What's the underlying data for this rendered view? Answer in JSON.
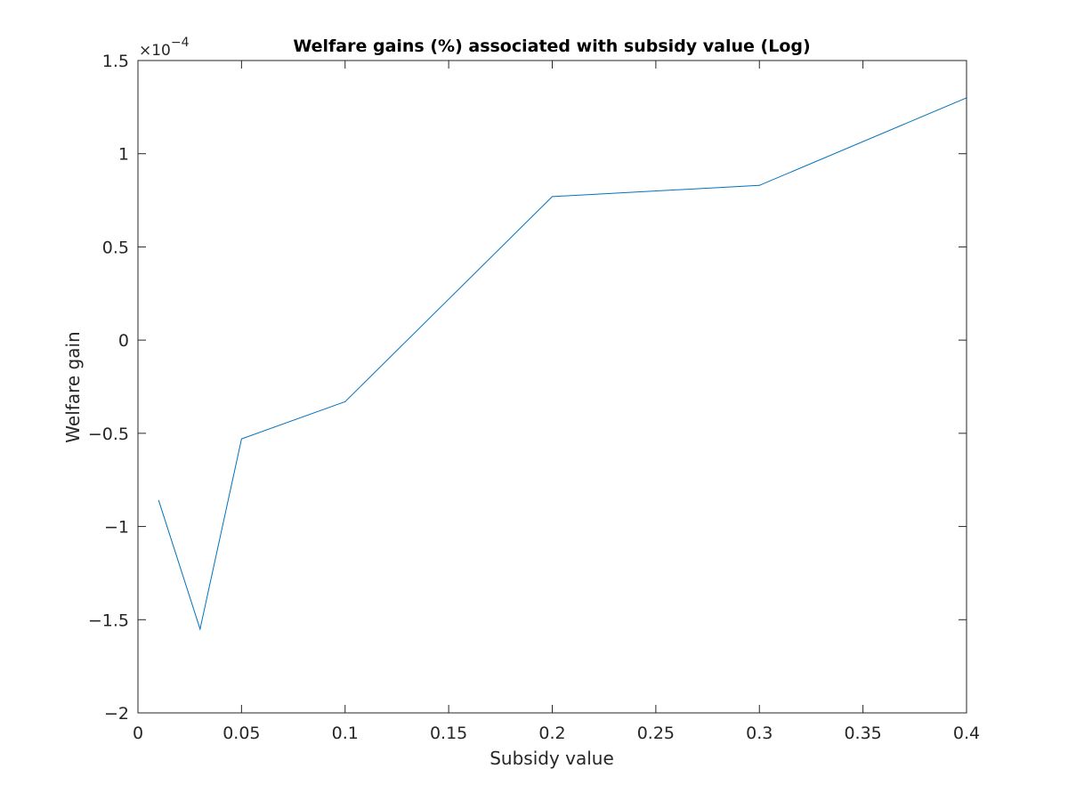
{
  "chart_data": {
    "type": "line",
    "title": "Welfare gains (%) associated with subsidy value (Log)",
    "xlabel": "Subsidy value",
    "ylabel": "Welfare gain",
    "y_exponent_label": "×10",
    "y_exponent_power": "−4",
    "xlim": [
      0,
      0.4
    ],
    "ylim": [
      -2,
      1.5
    ],
    "x_ticks": [
      0,
      0.05,
      0.1,
      0.15,
      0.2,
      0.25,
      0.3,
      0.35,
      0.4
    ],
    "x_tick_labels": [
      "0",
      "0.05",
      "0.1",
      "0.15",
      "0.2",
      "0.25",
      "0.3",
      "0.35",
      "0.4"
    ],
    "y_ticks": [
      -2,
      -1.5,
      -1,
      -0.5,
      0,
      0.5,
      1,
      1.5
    ],
    "y_tick_labels": [
      "−2",
      "−1.5",
      "−1",
      "−0.5",
      "0",
      "0.5",
      "1",
      "1.5"
    ],
    "grid": false,
    "legend": "none",
    "series": [
      {
        "color": "#0072bd",
        "x": [
          0.01,
          0.03,
          0.05,
          0.1,
          0.2,
          0.3,
          0.4
        ],
        "y": [
          -0.86,
          -1.55,
          -0.53,
          -0.33,
          0.77,
          0.83,
          1.3
        ]
      }
    ]
  }
}
